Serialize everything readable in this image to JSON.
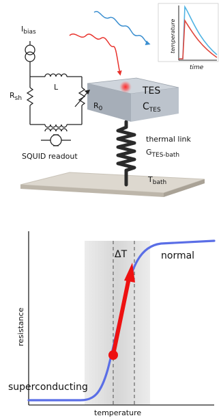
{
  "circuit": {
    "ibias": "I",
    "ibias_sub": "bias",
    "inductor": "L",
    "rsh": "R",
    "rsh_sub": "sh",
    "r0": "R",
    "r0_sub": "0",
    "squid": "SQUID readout"
  },
  "tes": {
    "label": "TES",
    "capacity": "C",
    "capacity_sub": "TES",
    "link": "thermal link",
    "conductance": "G",
    "conductance_sub": "TES-bath",
    "bath": "T",
    "bath_sub": "bath"
  },
  "inset": {
    "ylabel": "temperature",
    "xlabel": "time"
  },
  "transition": {
    "ylabel": "resistance",
    "xlabel": "temperature",
    "normal": "normal",
    "superconducting": "superconducting",
    "delta": "ΔT"
  },
  "colors": {
    "photon_red": "#e8302a",
    "photon_blue": "#3b8fd0",
    "curve": "#5a6ee6",
    "arrow": "#ee1111",
    "tes_block": "#b7bfc8"
  }
}
